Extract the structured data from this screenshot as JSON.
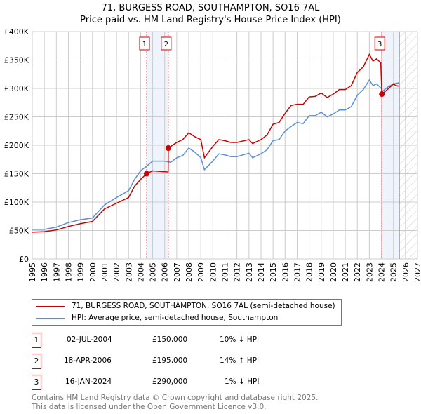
{
  "title_line1": "71, BURGESS ROAD, SOUTHAMPTON, SO16 7AL",
  "title_line2": "Price paid vs. HM Land Registry's House Price Index (HPI)",
  "chart_data": {
    "type": "line",
    "xlim": [
      1995,
      2027
    ],
    "ylim": [
      0,
      400000
    ],
    "x_ticks": [
      "1995",
      "1996",
      "1997",
      "1998",
      "1999",
      "2000",
      "2001",
      "2002",
      "2003",
      "2004",
      "2005",
      "2006",
      "2007",
      "2008",
      "2009",
      "2010",
      "2011",
      "2012",
      "2013",
      "2014",
      "2015",
      "2016",
      "2017",
      "2018",
      "2019",
      "2020",
      "2021",
      "2022",
      "2023",
      "2024",
      "2025",
      "2026",
      "2027"
    ],
    "y_ticks": [
      {
        "v": 0,
        "label": "£0"
      },
      {
        "v": 50000,
        "label": "£50K"
      },
      {
        "v": 100000,
        "label": "£100K"
      },
      {
        "v": 150000,
        "label": "£150K"
      },
      {
        "v": 200000,
        "label": "£200K"
      },
      {
        "v": 250000,
        "label": "£250K"
      },
      {
        "v": 300000,
        "label": "£300K"
      },
      {
        "v": 350000,
        "label": "£350K"
      },
      {
        "v": 400000,
        "label": "£400K"
      }
    ],
    "grid": true,
    "series": [
      {
        "name": "71, BURGESS ROAD, SOUTHAMPTON, SO16 7AL (semi-detached house)",
        "color": "#cc0000",
        "x": [
          1995,
          1996,
          1997,
          1998,
          1999,
          2000,
          2001,
          2002,
          2003,
          2003.5,
          2004,
          2004.5,
          2005,
          2006.29,
          2006.3,
          2007,
          2007.5,
          2008,
          2008.5,
          2009,
          2009.3,
          2010,
          2010.5,
          2011,
          2011.5,
          2012,
          2013,
          2013.3,
          2014,
          2014.5,
          2015,
          2015.5,
          2016,
          2016.5,
          2017,
          2017.5,
          2018,
          2018.5,
          2019,
          2019.5,
          2020,
          2020.5,
          2021,
          2021.5,
          2022,
          2022.5,
          2023,
          2023.3,
          2023.6,
          2023.95,
          2024.04,
          2024.5,
          2025,
          2025.2,
          2025.5
        ],
        "y": [
          47000,
          48000,
          51000,
          57000,
          62000,
          66000,
          88000,
          98000,
          108000,
          128000,
          140000,
          150000,
          155000,
          153000,
          195000,
          205000,
          210000,
          222000,
          215000,
          210000,
          178000,
          198000,
          210000,
          208000,
          205000,
          205000,
          210000,
          203000,
          210000,
          218000,
          237000,
          240000,
          256000,
          270000,
          272000,
          272000,
          285000,
          286000,
          292000,
          284000,
          290000,
          298000,
          298000,
          305000,
          328000,
          338000,
          360000,
          348000,
          352000,
          345000,
          290000,
          298000,
          308000,
          305000,
          304000
        ]
      },
      {
        "name": "HPI: Average price, semi-detached house, Southampton",
        "color": "#5b8fd4",
        "x": [
          1995,
          1996,
          1997,
          1998,
          1999,
          2000,
          2001,
          2002,
          2003,
          2003.5,
          2004,
          2004.5,
          2005,
          2006,
          2006.5,
          2007,
          2007.5,
          2008,
          2008.5,
          2009,
          2009.3,
          2010,
          2010.5,
          2011,
          2011.5,
          2012,
          2013,
          2013.3,
          2014,
          2014.5,
          2015,
          2015.5,
          2016,
          2016.5,
          2017,
          2017.5,
          2018,
          2018.5,
          2019,
          2019.5,
          2020,
          2020.5,
          2021,
          2021.5,
          2022,
          2022.5,
          2023,
          2023.3,
          2023.6,
          2024,
          2024.1,
          2024.5,
          2025,
          2025.5
        ],
        "y": [
          52000,
          52000,
          56000,
          64000,
          69000,
          72000,
          95000,
          108000,
          120000,
          140000,
          155000,
          163000,
          172000,
          172000,
          170000,
          178000,
          182000,
          195000,
          188000,
          178000,
          157000,
          172000,
          185000,
          183000,
          180000,
          180000,
          186000,
          178000,
          185000,
          192000,
          208000,
          210000,
          225000,
          233000,
          240000,
          238000,
          252000,
          252000,
          258000,
          250000,
          255000,
          262000,
          262000,
          268000,
          288000,
          298000,
          315000,
          305000,
          308000,
          300000,
          295000,
          302000,
          308000,
          310000
        ]
      }
    ],
    "sales": [
      {
        "n": "1",
        "x": 2004.5,
        "y": 150000,
        "date": "02-JUL-2004",
        "price": "£150,000",
        "hpi": "10% ↓ HPI"
      },
      {
        "n": "2",
        "x": 2006.3,
        "y": 195000,
        "date": "18-APR-2006",
        "price": "£195,000",
        "hpi": "14% ↑ HPI"
      },
      {
        "n": "3",
        "x": 2024.04,
        "y": 290000,
        "date": "16-JAN-2024",
        "price": "£290,000",
        "hpi": "1% ↓ HPI"
      }
    ],
    "shaded_periods": [
      [
        2004.5,
        2006.3
      ],
      [
        2024.04,
        2025.5
      ]
    ],
    "forecast_hatch_from": 2025.5
  },
  "footer_line1": "Contains HM Land Registry data © Crown copyright and database right 2025.",
  "footer_line2": "This data is licensed under the Open Government Licence v3.0."
}
